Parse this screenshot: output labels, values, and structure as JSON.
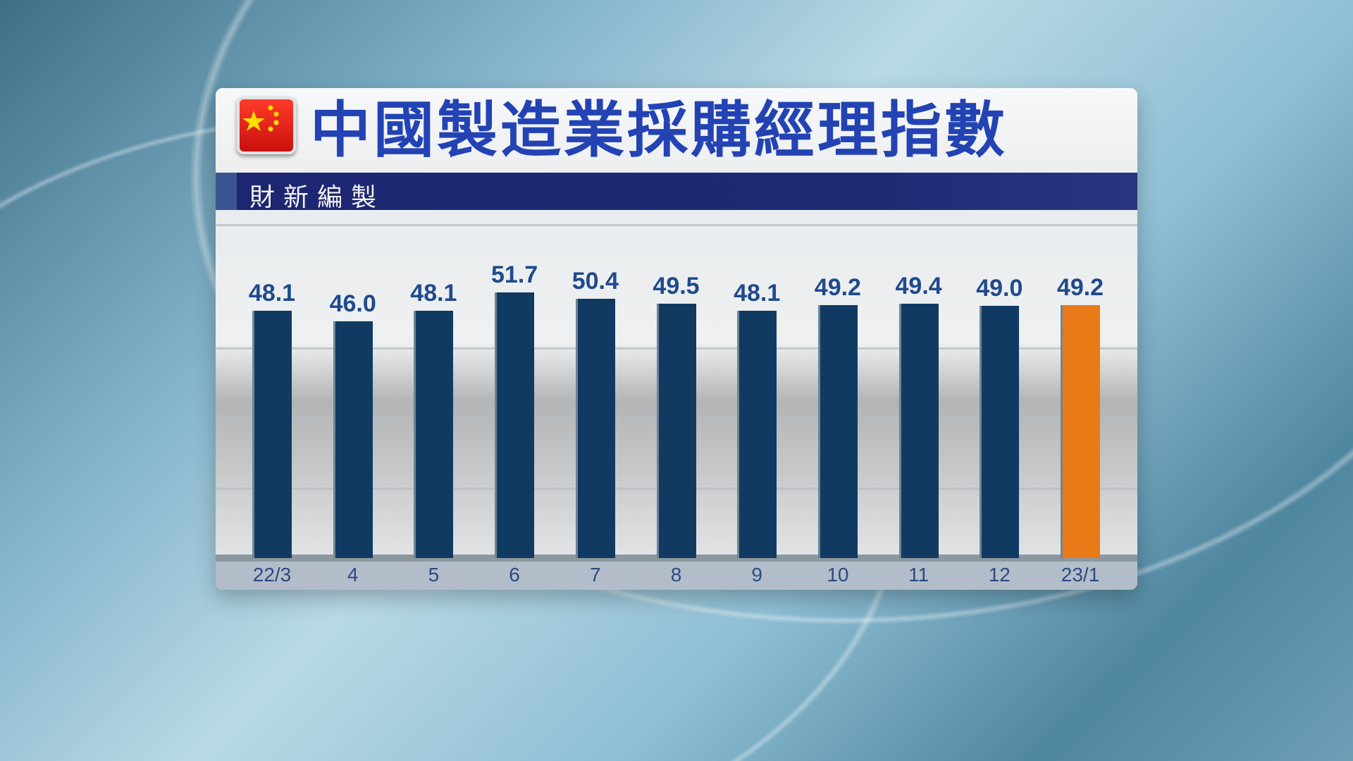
{
  "header": {
    "title": "中國製造業採購經理指數",
    "subtitle": "財新編製",
    "flag_icon": "china-flag-icon"
  },
  "colors": {
    "bar": "#113a63",
    "highlight_bar": "#ea7a18",
    "title": "#2343b4",
    "subtitle_bar": "#1d2670"
  },
  "chart_data": {
    "type": "bar",
    "title": "中國製造業採購經理指數",
    "subtitle": "財新編製",
    "categories": [
      "22/3",
      "4",
      "5",
      "6",
      "7",
      "8",
      "9",
      "10",
      "11",
      "12",
      "23/1"
    ],
    "values": [
      48.1,
      46.0,
      48.1,
      51.7,
      50.4,
      49.5,
      48.1,
      49.2,
      49.4,
      49.0,
      49.2
    ],
    "value_labels": [
      "48.1",
      "46.0",
      "48.1",
      "51.7",
      "50.4",
      "49.5",
      "48.1",
      "49.2",
      "49.4",
      "49.0",
      "49.2"
    ],
    "highlight_index": 10,
    "ylim": [
      0,
      55
    ],
    "grid": true,
    "legend": "none",
    "xlabel": "",
    "ylabel": ""
  }
}
